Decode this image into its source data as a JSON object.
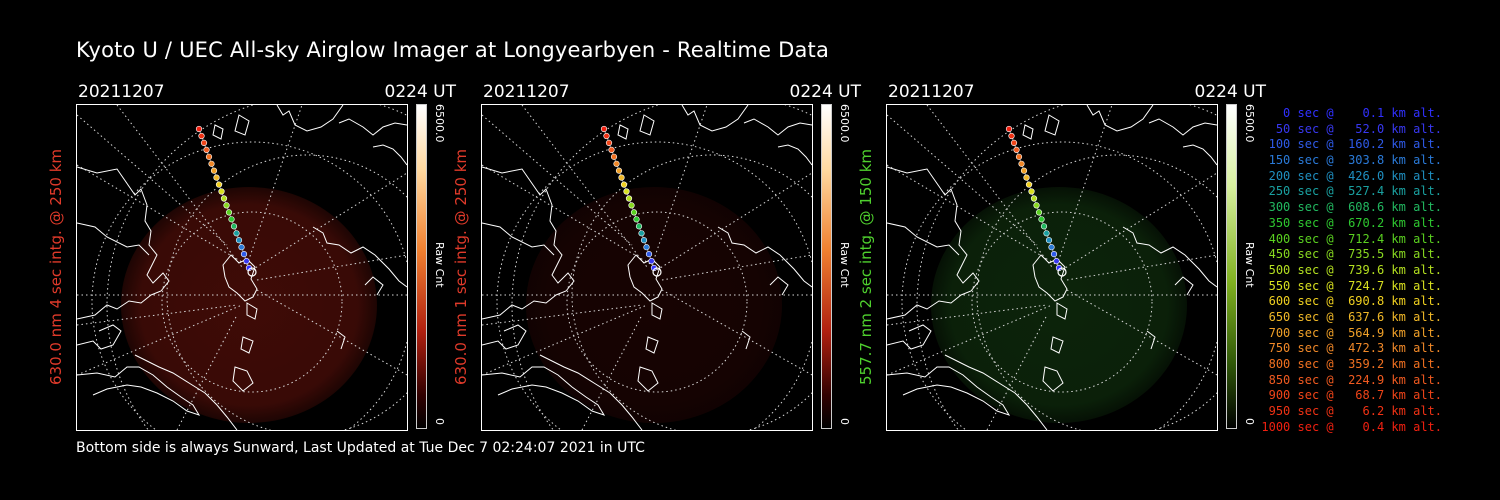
{
  "title": "Kyoto U / UEC All-sky Airglow Imager at Longyearbyen - Realtime Data",
  "footer": "Bottom side is always Sunward, Last Updated at Tue Dec  7 02:24:07 2021 in UTC",
  "chart_data": {
    "type": "heatmap",
    "panels": [
      {
        "date": "20211207",
        "time": "0224 UT",
        "ylabel": "630.0 nm 4 sec intg. @ 250 km",
        "label_color": "#e03a2a",
        "colormap": "red",
        "colorbar_max": "6500.0",
        "colorbar_unit": "Raw Cnt",
        "colorbar_min": "0",
        "glow_color": "#4a0d08",
        "glow_opacity": 0.85
      },
      {
        "date": "20211207",
        "time": "0224 UT",
        "ylabel": "630.0 nm 1 sec intg. @ 250 km",
        "label_color": "#e03a2a",
        "colormap": "red",
        "colorbar_max": "6500.0",
        "colorbar_unit": "Raw Cnt",
        "colorbar_min": "0",
        "glow_color": "#2a0604",
        "glow_opacity": 0.55
      },
      {
        "date": "20211207",
        "time": "0224 UT",
        "ylabel": "557.7 nm 2 sec intg. @ 150 km",
        "label_color": "#4fd02e",
        "colormap": "green",
        "colorbar_max": "6500.0",
        "colorbar_unit": "Raw Cnt",
        "colorbar_min": "0",
        "glow_color": "#0e2a0c",
        "glow_opacity": 0.85
      }
    ],
    "trajectory_legend": [
      {
        "text": "   0 sec @    0.1 km alt.",
        "color": "#3030ff"
      },
      {
        "text": "  50 sec @   52.0 km alt.",
        "color": "#3838f0"
      },
      {
        "text": " 100 sec @  160.2 km alt.",
        "color": "#2e5ae8"
      },
      {
        "text": " 150 sec @  303.8 km alt.",
        "color": "#2a7ad8"
      },
      {
        "text": " 200 sec @  426.0 km alt.",
        "color": "#1f8fc0"
      },
      {
        "text": " 250 sec @  527.4 km alt.",
        "color": "#1aa0a0"
      },
      {
        "text": " 300 sec @  608.6 km alt.",
        "color": "#22b860"
      },
      {
        "text": " 350 sec @  670.2 km alt.",
        "color": "#2ec830"
      },
      {
        "text": " 400 sec @  712.4 km alt.",
        "color": "#5ad020"
      },
      {
        "text": " 450 sec @  735.5 km alt.",
        "color": "#88d820"
      },
      {
        "text": " 500 sec @  739.6 km alt.",
        "color": "#b4e020"
      },
      {
        "text": " 550 sec @  724.7 km alt.",
        "color": "#d8e020"
      },
      {
        "text": " 600 sec @  690.8 km alt.",
        "color": "#f0d020"
      },
      {
        "text": " 650 sec @  637.6 km alt.",
        "color": "#f0b828"
      },
      {
        "text": " 700 sec @  564.9 km alt.",
        "color": "#f0a028"
      },
      {
        "text": " 750 sec @  472.3 km alt.",
        "color": "#f08828"
      },
      {
        "text": " 800 sec @  359.2 km alt.",
        "color": "#f07020"
      },
      {
        "text": " 850 sec @  224.9 km alt.",
        "color": "#f05a20"
      },
      {
        "text": " 900 sec @   68.7 km alt.",
        "color": "#f04418"
      },
      {
        "text": " 950 sec @    6.2 km alt.",
        "color": "#f03214"
      },
      {
        "text": "1000 sec @    0.4 km alt.",
        "color": "#f02010"
      }
    ]
  }
}
